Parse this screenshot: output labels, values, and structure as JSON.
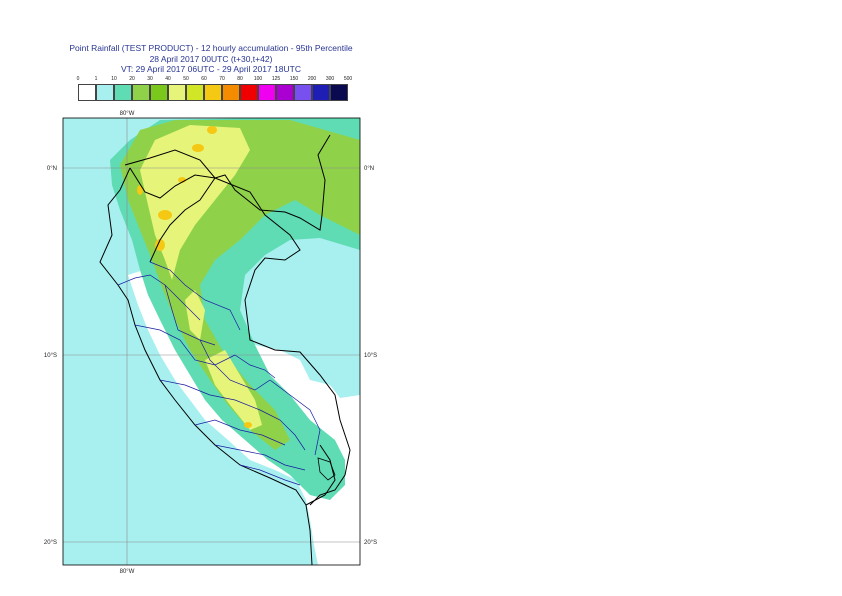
{
  "title": {
    "line1": "Point Rainfall (TEST PRODUCT) - 12 hourly accumulation - 95th Percentile",
    "line2": "28 April 2017 00UTC (t+30,t+42)",
    "line3": "VT: 29 April 2017 06UTC - 29 April 2017 18UTC"
  },
  "legend": {
    "thresholds": [
      "0",
      "1",
      "10",
      "20",
      "30",
      "40",
      "50",
      "60",
      "70",
      "80",
      "100",
      "125",
      "150",
      "200",
      "300",
      "500"
    ],
    "colors": [
      "#ffffff",
      "#a8f0f0",
      "#5fdcb4",
      "#8fd24a",
      "#7ac81c",
      "#e6f57a",
      "#d2e628",
      "#f5c814",
      "#f58c00",
      "#f00000",
      "#f000f0",
      "#aa00d2",
      "#7850f0",
      "#1e1eb4",
      "#0a0a50"
    ]
  },
  "map": {
    "lon_labels": {
      "top": "80°W",
      "bottom": "80°W"
    },
    "lat_labels": [
      "0°N",
      "10°S",
      "20°S"
    ],
    "colors": {
      "ocean": "#a8f0f0",
      "land_low": "#5fdcb4",
      "land_mid": "#8fd24a",
      "wet_core": "#e6f57a",
      "heavy": "#f5c814",
      "dry": "#ffffff",
      "country_border": "#000000",
      "region_border": "#1a1aa0",
      "grid": "#8c8c8c"
    }
  }
}
